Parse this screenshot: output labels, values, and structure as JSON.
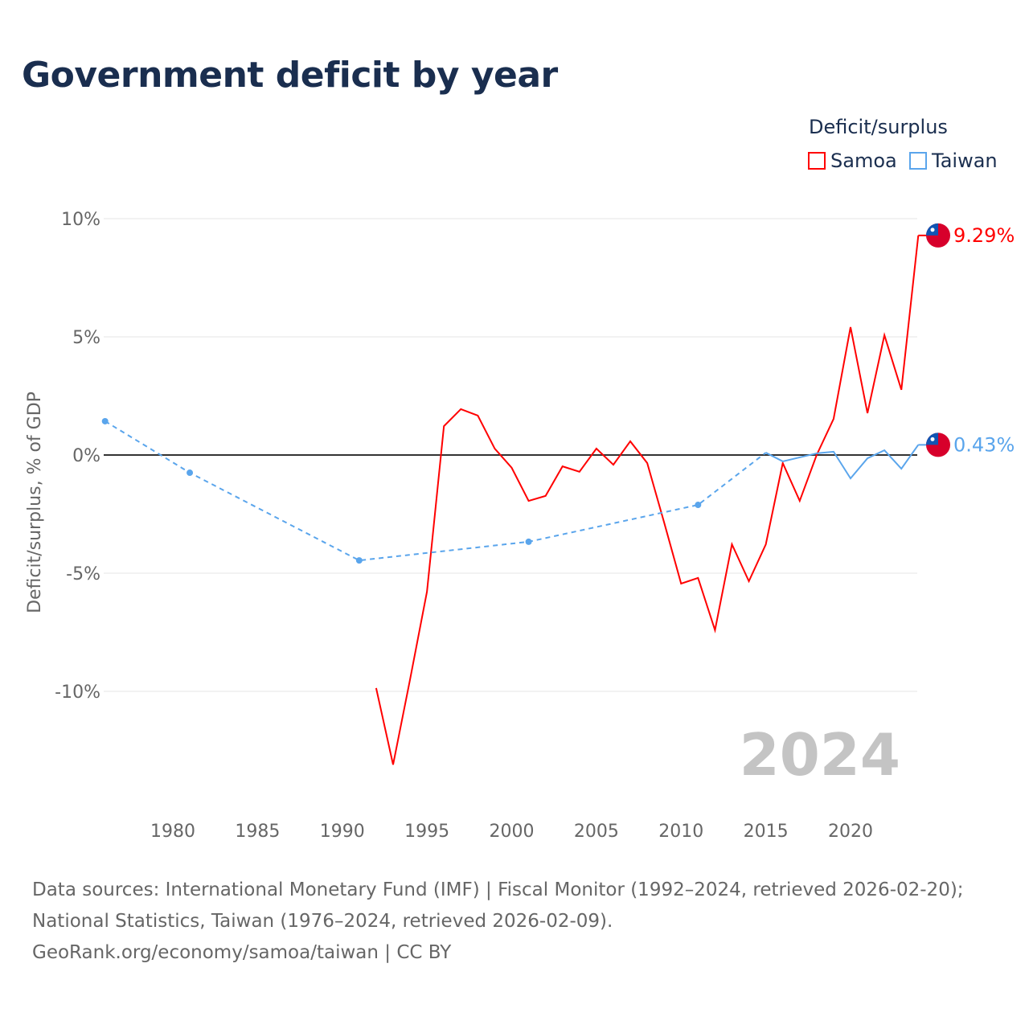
{
  "title": "Government deficit by year",
  "legend": {
    "title": "Deficit/surplus",
    "items": [
      {
        "name": "Samoa",
        "color": "#ff0000"
      },
      {
        "name": "Taiwan",
        "color": "#5aa5ec"
      }
    ]
  },
  "year_watermark": "2024",
  "footer": {
    "line1": "Data sources: International Monetary Fund (IMF) | Fiscal Monitor (1992–2024, retrieved 2026-02-20);",
    "line2": "National Statistics, Taiwan (1976–2024, retrieved 2026-02-09).",
    "line3": "GeoRank.org/economy/samoa/taiwan | CC BY"
  },
  "chart_data": {
    "type": "line",
    "title": "Government deficit by year",
    "xlabel": "",
    "ylabel": "Deficit/surplus, % of GDP",
    "xlim": [
      1975.6,
      2024
    ],
    "ylim": [
      -14,
      10
    ],
    "x_ticks": [
      1980,
      1985,
      1990,
      1995,
      2000,
      2005,
      2010,
      2015,
      2020
    ],
    "y_ticks": [
      {
        "v": 10,
        "label": "10%"
      },
      {
        "v": 5,
        "label": "5%"
      },
      {
        "v": 0,
        "label": "0%"
      },
      {
        "v": -5,
        "label": "-5%"
      },
      {
        "v": -10,
        "label": "-10%"
      }
    ],
    "series": [
      {
        "name": "Samoa",
        "color": "#ff0000",
        "end_label": "9.29%",
        "x": [
          1992,
          1993,
          1994,
          1995,
          1996,
          1997,
          1998,
          1999,
          2000,
          2001,
          2002,
          2003,
          2004,
          2005,
          2006,
          2007,
          2008,
          2009,
          2010,
          2011,
          2012,
          2013,
          2014,
          2015,
          2016,
          2017,
          2018,
          2019,
          2020,
          2021,
          2022,
          2023,
          2024
        ],
        "y": [
          -9.86,
          -13.1,
          -9.5,
          -5.78,
          1.22,
          1.94,
          1.67,
          0.27,
          -0.54,
          -1.94,
          -1.73,
          -0.48,
          -0.71,
          0.27,
          -0.41,
          0.58,
          -0.34,
          -2.86,
          -5.44,
          -5.2,
          -7.41,
          -3.78,
          -5.34,
          -3.78,
          -0.34,
          -1.94,
          0,
          1.53,
          5.41,
          1.77,
          5.07,
          2.76,
          9.29
        ]
      },
      {
        "name": "Taiwan",
        "color": "#5aa5ec",
        "end_label": "0.43%",
        "x": [
          1976,
          1981,
          1991,
          2001,
          2011,
          2015,
          2016,
          2017,
          2018,
          2019,
          2020,
          2021,
          2022,
          2023,
          2024
        ],
        "y": [
          1.43,
          -0.75,
          -4.46,
          -3.67,
          -2.11,
          0.1,
          -0.27,
          -0.1,
          0.07,
          0.14,
          -0.99,
          -0.14,
          0.2,
          -0.58,
          0.43
        ],
        "sparse_until": 2015
      }
    ]
  }
}
